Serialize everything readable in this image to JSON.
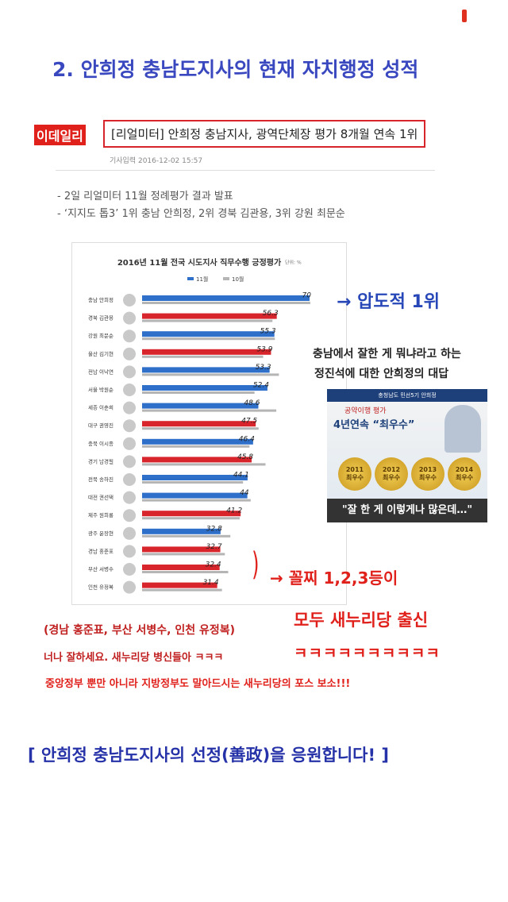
{
  "header": {
    "title": "2. 안희정 충남도지사의 현재 자치행정 성적"
  },
  "news": {
    "logo": "이데일리",
    "headline": "[리얼미터] 안희정 충남지사, 광역단체장 평가 8개월 연속 1위",
    "date": "기사입력 2016-12-02 15:57",
    "bullets": [
      "- 2일 리얼미터 11월 정례평가 결과 발표",
      "- ‘지지도 톱3’ 1위 충남 안희정, 2위 경북 김관용, 3위 강원 최문순"
    ]
  },
  "chart_data": {
    "type": "bar",
    "orientation": "horizontal",
    "title": "2016년 11월 전국 시도지사 직무수행 긍정평가",
    "unit": "단위: %",
    "categories": [
      "충남 안희정",
      "경북 김관용",
      "강원 최문순",
      "울산 김기현",
      "전남 이낙연",
      "서울 박원순",
      "세종 이춘희",
      "대구 권영진",
      "충북 이시종",
      "경기 남경필",
      "전북 송하진",
      "대전 권선택",
      "제주 원희룡",
      "광주 윤장현",
      "경남 홍준표",
      "부산 서병수",
      "인천 유정복"
    ],
    "series": [
      {
        "name": "11월",
        "colors": [
          "#2e6fc9",
          "#d8252b",
          "#2e6fc9",
          "#d8252b",
          "#2e6fc9",
          "#2e6fc9",
          "#2e6fc9",
          "#d8252b",
          "#2e6fc9",
          "#d8252b",
          "#2e6fc9",
          "#2e6fc9",
          "#d8252b",
          "#2e6fc9",
          "#d8252b",
          "#d8252b",
          "#d8252b"
        ],
        "values": [
          70.0,
          56.3,
          55.3,
          53.9,
          53.3,
          52.4,
          48.6,
          47.5,
          46.4,
          45.8,
          44.1,
          44.0,
          41.2,
          32.8,
          32.7,
          32.4,
          31.4
        ]
      },
      {
        "name": "10월",
        "color": "#b5b5b5",
        "values": [
          70.3,
          54.5,
          55.5,
          50.6,
          57.2,
          47.0,
          56.1,
          48.7,
          44.9,
          51.6,
          42.2,
          45.4,
          40.8,
          36.9,
          34.6,
          36.0,
          33.4
        ]
      }
    ],
    "xlim": [
      0,
      72
    ]
  },
  "notes": {
    "first": "→ 압도적 1위",
    "question1": "충남에서 잘한 게 뭐냐라고 하는",
    "question2": "정진석에 대한 안희정의 대답",
    "poster": {
      "top": "충청남도 민선5기 안희정",
      "sub": "공약이행 평가",
      "main": "4년연속 “최우수”",
      "years": [
        "2011",
        "2012",
        "2013",
        "2014"
      ],
      "medal": "최우수",
      "caption": "\"잘 한 게 이렇게나 많은데…\""
    },
    "last1": "→ 꼴찌 1,2,3등이",
    "last2": "모두 새누리당 출신",
    "names": "(경남 홍준표, 부산 서병수, 인천 유정복)",
    "line1": "너나 잘하세요. 새누리당 병신들아 ㅋㅋㅋ",
    "line1b": "ㅋㅋㅋㅋㅋㅋㅋㅋㅋㅋ",
    "line2": "중앙정부 뿐만 아니라 지방정부도 말아드시는 새누리당의 포스 보소!!!"
  },
  "footer": {
    "text": "[ 안희정 충남도지사의 선정(善政)을 응원합니다! ]"
  }
}
